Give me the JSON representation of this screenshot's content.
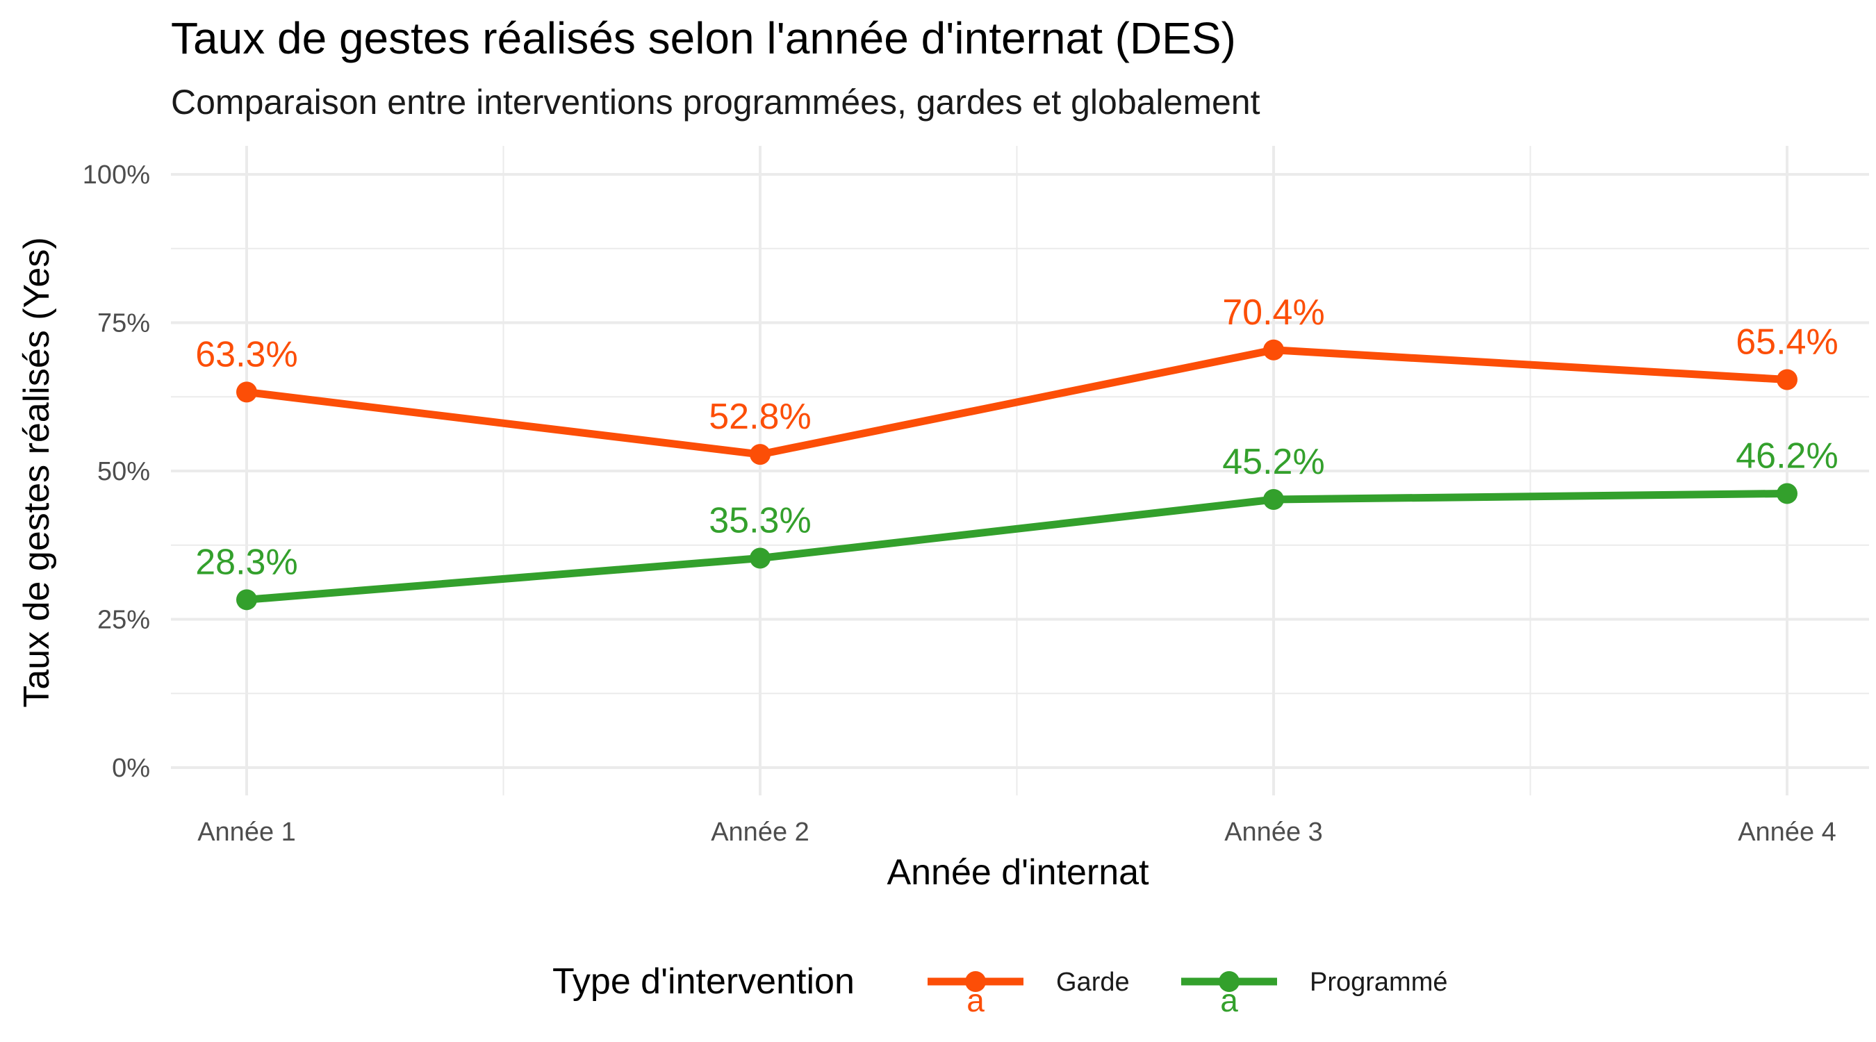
{
  "chart_data": {
    "type": "line",
    "title": "Taux de gestes réalisés selon l'année d'internat (DES)",
    "subtitle": "Comparaison entre interventions programmées, gardes et globalement",
    "xlabel": "Année d'internat",
    "ylabel": "Taux de gestes réalisés (Yes)",
    "categories": [
      "Année 1",
      "Année 2",
      "Année 3",
      "Année 4"
    ],
    "ylim": [
      0,
      100
    ],
    "y_ticks": [
      0,
      25,
      50,
      75,
      100
    ],
    "y_tick_labels": [
      "0%",
      "25%",
      "50%",
      "75%",
      "100%"
    ],
    "grid": true,
    "legend_position": "bottom",
    "legend_title": "Type d'intervention",
    "legend_key_glyph": "a",
    "series": [
      {
        "name": "Garde",
        "color": "#FC4E07",
        "values": [
          63.3,
          52.8,
          70.4,
          65.4
        ],
        "labels": [
          "63.3%",
          "52.8%",
          "70.4%",
          "65.4%"
        ]
      },
      {
        "name": "Programmé",
        "color": "#33A02C",
        "values": [
          28.3,
          35.3,
          45.2,
          46.2
        ],
        "labels": [
          "28.3%",
          "35.3%",
          "45.2%",
          "46.2%"
        ]
      }
    ]
  }
}
